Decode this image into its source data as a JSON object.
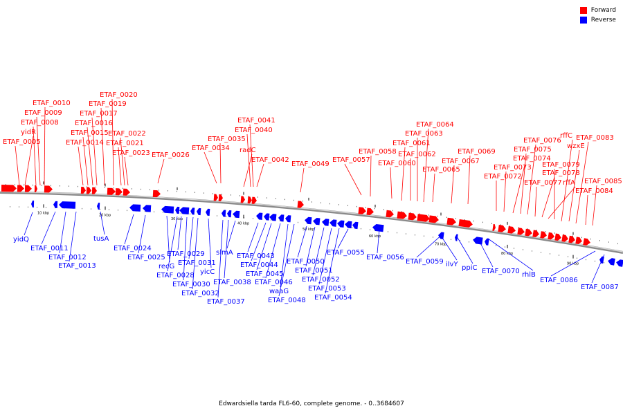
{
  "legend": {
    "forward_label": "Forward",
    "reverse_label": "Reverse",
    "forward_color": "#ff0000",
    "reverse_color": "#0000ff"
  },
  "caption": "Edwardsiella tarda FL6-60, complete genome. - 0..3684607",
  "ticks": [
    "10 kbp",
    "20 kbp",
    "30 kbp",
    "40 kbp",
    "50 kbp",
    "60 kbp",
    "70 kbp",
    "80 kbp",
    "90 kbp"
  ],
  "forward_labels": [
    "ETAF_0005",
    "yidR",
    "ETAF_0008",
    "ETAF_0009",
    "ETAF_0010",
    "ETAF_0014",
    "ETAF_0015",
    "ETAF_0016",
    "ETAF_0017",
    "ETAF_0019",
    "ETAF_0020",
    "ETAF_0021",
    "ETAF_0022",
    "ETAF_0023",
    "ETAF_0026",
    "ETAF_0034",
    "ETAF_0035",
    "radC",
    "ETAF_0040",
    "ETAF_0041",
    "ETAF_0042",
    "ETAF_0049",
    "ETAF_0057",
    "ETAF_0058",
    "ETAF_0060",
    "ETAF_0061",
    "ETAF_0062",
    "ETAF_0063",
    "ETAF_0064",
    "ETAF_0065",
    "ETAF_0067",
    "ETAF_0069",
    "ETAF_0072",
    "ETAF_0073",
    "ETAF_0074",
    "ETAF_0075",
    "ETAF_0076",
    "ETAF_0077",
    "ETAF_0078",
    "rffA",
    "ETAF_0079",
    "rffC",
    "wzxE",
    "ETAF_0083",
    "ETAF_0084",
    "ETAF_0085"
  ],
  "reverse_labels": [
    "yidQ",
    "ETAF_0011",
    "ETAF_0012",
    "ETAF_0013",
    "tusA",
    "ETAF_0024",
    "ETAF_0025",
    "recG",
    "ETAF_0028",
    "ETAF_0029",
    "ETAF_0030",
    "ETAF_0031",
    "ETAF_0032",
    "yicC",
    "ETAF_0037",
    "ETAF_0038",
    "slmA",
    "ETAF_0043",
    "ETAF_0044",
    "ETAF_0045",
    "ETAF_0046",
    "waaG",
    "ETAF_0048",
    "ETAF_0050",
    "ETAF_0051",
    "ETAF_0052",
    "ETAF_0053",
    "ETAF_0054",
    "ETAF_0055",
    "ETAF_0056",
    "ETAF_0059",
    "ilvY",
    "ppiC",
    "ETAF_0070",
    "rhlB",
    "ETAF_0086",
    "ETAF_0087"
  ]
}
